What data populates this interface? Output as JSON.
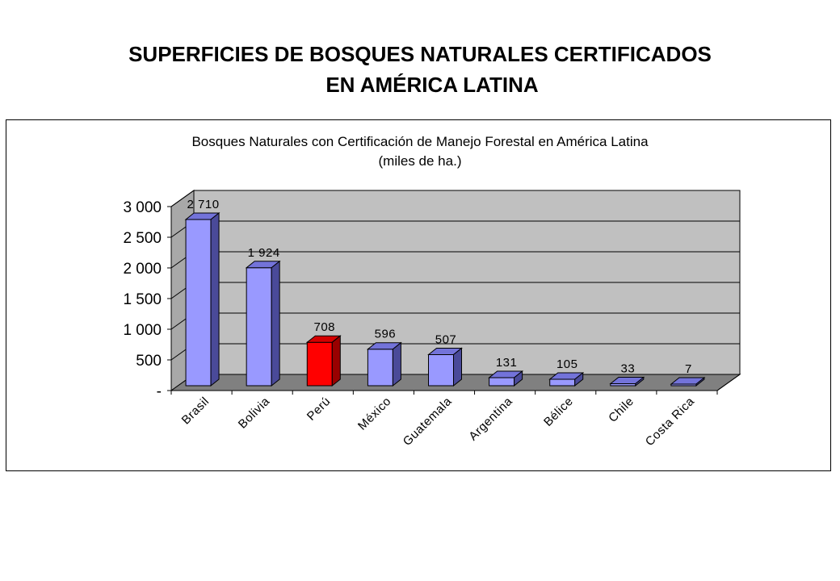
{
  "page": {
    "title_line1": "SUPERFICIES DE BOSQUES NATURALES CERTIFICADOS",
    "title_line2": "EN AMÉRICA LATINA"
  },
  "chart_data": {
    "type": "bar",
    "title": "Bosques Naturales con Certificación de Manejo Forestal en América Latina",
    "subtitle": "(miles de ha.)",
    "categories": [
      "Brasil",
      "Bolivia",
      "Perú",
      "México",
      "Guatemala",
      "Argentina",
      "Bélice",
      "Chile",
      "Costa Rica"
    ],
    "values": [
      2710,
      1924,
      708,
      596,
      507,
      131,
      105,
      33,
      7
    ],
    "value_labels": [
      "2 710",
      "1 924",
      "708",
      "596",
      "507",
      "131",
      "105",
      "33",
      "7"
    ],
    "ylim": [
      0,
      3000
    ],
    "yticks": [
      0,
      500,
      1000,
      1500,
      2000,
      2500,
      3000
    ],
    "ytick_labels": [
      "-",
      "500",
      "1 000",
      "1 500",
      "2 000",
      "2 500",
      "3 000"
    ],
    "grid": true,
    "legend": "none",
    "style": "3d-bar",
    "colors": {
      "bar_front": "#9999ff",
      "bar_top": "#7373d9",
      "bar_side": "#4a4a99",
      "highlight_front": "#ff0000",
      "highlight_top": "#d40000",
      "highlight_side": "#990000",
      "wall": "#c0c0c0",
      "floor": "#808080"
    },
    "highlight_index": 2
  }
}
